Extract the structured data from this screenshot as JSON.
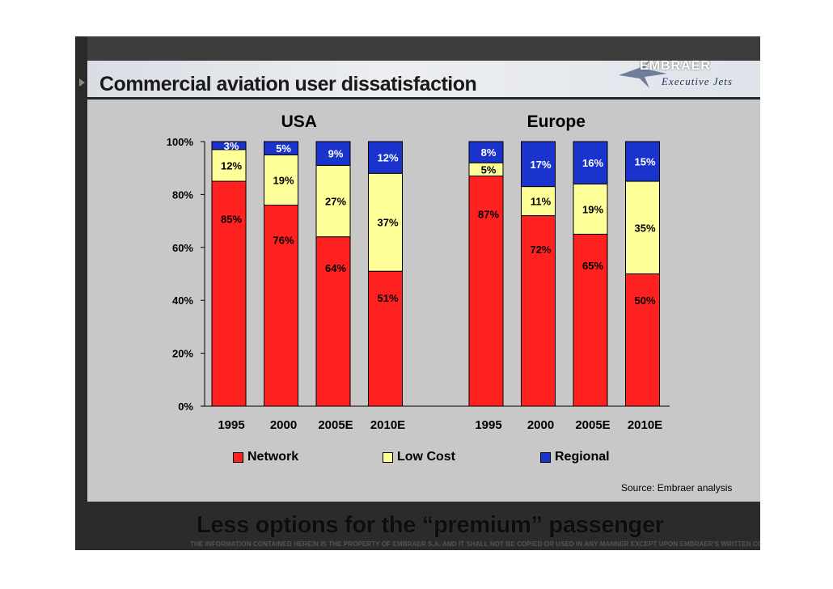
{
  "slide": {
    "title": "Commercial aviation user dissatisfaction",
    "logo": {
      "brand": "EMBRAER",
      "subtitle": "Executive Jets"
    },
    "source": "Source: Embraer analysis",
    "tagline": "Less options for the “premium” passenger",
    "disclaimer": "THE INFORMATION CONTAINED HEREIN IS THE PROPERTY OF EMBRAER S.A. AND IT SHALL NOT BE COPIED OR USED IN ANY MANNER EXCEPT UPON EMBRAER'S WRITTEN CONSENT."
  },
  "colors": {
    "network": "#ff2020",
    "low_cost": "#ffff99",
    "regional": "#1a33cc",
    "panel": "#c8c8c8"
  },
  "chart_data": {
    "type": "bar",
    "stacked": true,
    "groups": [
      {
        "name": "USA",
        "categories": [
          "1995",
          "2000",
          "2005E",
          "2010E"
        ]
      },
      {
        "name": "Europe",
        "categories": [
          "1995",
          "2000",
          "2005E",
          "2010E"
        ]
      }
    ],
    "series": [
      {
        "name": "Network",
        "key": "network",
        "values": [
          85,
          76,
          64,
          51,
          87,
          72,
          65,
          50
        ]
      },
      {
        "name": "Low Cost",
        "key": "low_cost",
        "values": [
          12,
          19,
          27,
          37,
          5,
          11,
          19,
          35
        ]
      },
      {
        "name": "Regional",
        "key": "regional",
        "values": [
          3,
          5,
          9,
          12,
          8,
          17,
          16,
          15
        ]
      }
    ],
    "y_ticks": [
      "0%",
      "20%",
      "40%",
      "60%",
      "80%",
      "100%"
    ],
    "ylim": [
      0,
      100
    ],
    "legend_position": "bottom",
    "legend": [
      "Network",
      "Low Cost",
      "Regional"
    ]
  }
}
